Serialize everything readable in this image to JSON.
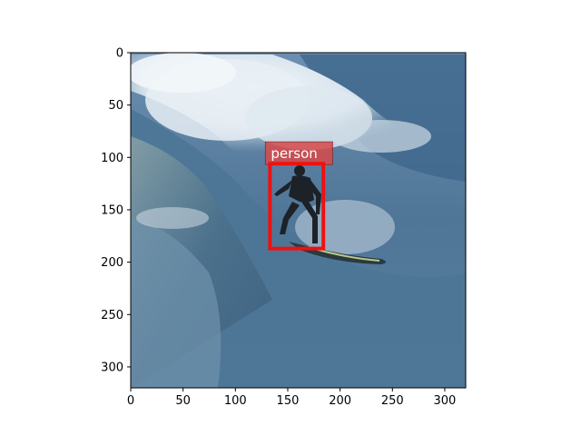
{
  "image": {
    "description_icon": "surfer-on-wave-photo"
  },
  "axes": {
    "x_ticks": [
      "0",
      "50",
      "100",
      "150",
      "200",
      "250",
      "300"
    ],
    "y_ticks": [
      "0",
      "50",
      "100",
      "150",
      "200",
      "250",
      "300"
    ],
    "x_range": [
      0,
      320
    ],
    "y_range": [
      0,
      320
    ]
  },
  "detection": {
    "label": "person",
    "box": {
      "x1": 133,
      "y1": 106,
      "x2": 184,
      "y2": 187
    },
    "box_color": "#ee1111",
    "label_bg": "#d84a4a"
  },
  "colors": {
    "water_dark": "#3d5f80",
    "water_mid": "#5f86a8",
    "foam": "#e9f0f6"
  }
}
